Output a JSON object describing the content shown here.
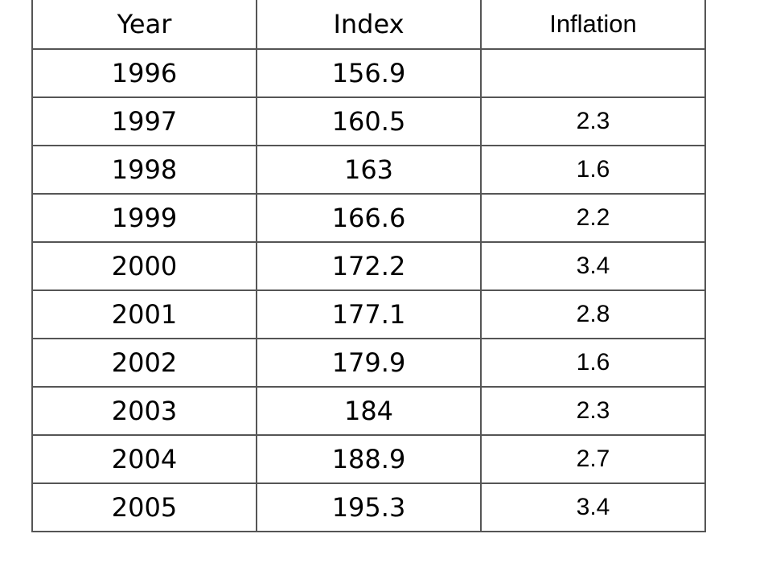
{
  "chart_data": {
    "type": "table",
    "columns": [
      "Year",
      "Index",
      "Inflation"
    ],
    "rows": [
      {
        "year": "1996",
        "index": "156.9",
        "inflation": ""
      },
      {
        "year": "1997",
        "index": "160.5",
        "inflation": "2.3"
      },
      {
        "year": "1998",
        "index": "163",
        "inflation": "1.6"
      },
      {
        "year": "1999",
        "index": "166.6",
        "inflation": "2.2"
      },
      {
        "year": "2000",
        "index": "172.2",
        "inflation": "3.4"
      },
      {
        "year": "2001",
        "index": "177.1",
        "inflation": "2.8"
      },
      {
        "year": "2002",
        "index": "179.9",
        "inflation": "1.6"
      },
      {
        "year": "2003",
        "index": "184",
        "inflation": "2.3"
      },
      {
        "year": "2004",
        "index": "188.9",
        "inflation": "2.7"
      },
      {
        "year": "2005",
        "index": "195.3",
        "inflation": "3.4"
      }
    ]
  }
}
